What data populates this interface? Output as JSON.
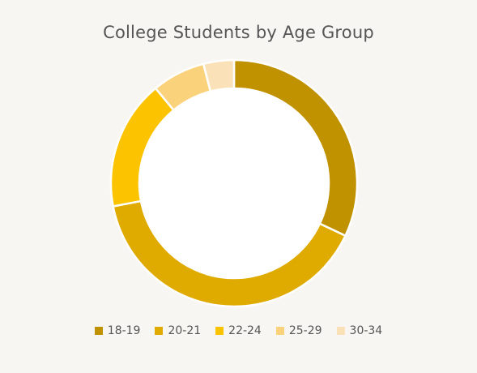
{
  "chart_data": {
    "type": "pie",
    "variant": "donut",
    "title": "College Students by Age Group",
    "categories": [
      "18-19",
      "20-21",
      "22-24",
      "25-29",
      "30-34"
    ],
    "values": [
      32,
      40,
      17,
      7,
      4
    ],
    "colors": [
      "#c09200",
      "#dfab00",
      "#fcc300",
      "#fbd27c",
      "#fbe1b8"
    ],
    "legend_position": "bottom",
    "grid": false
  }
}
